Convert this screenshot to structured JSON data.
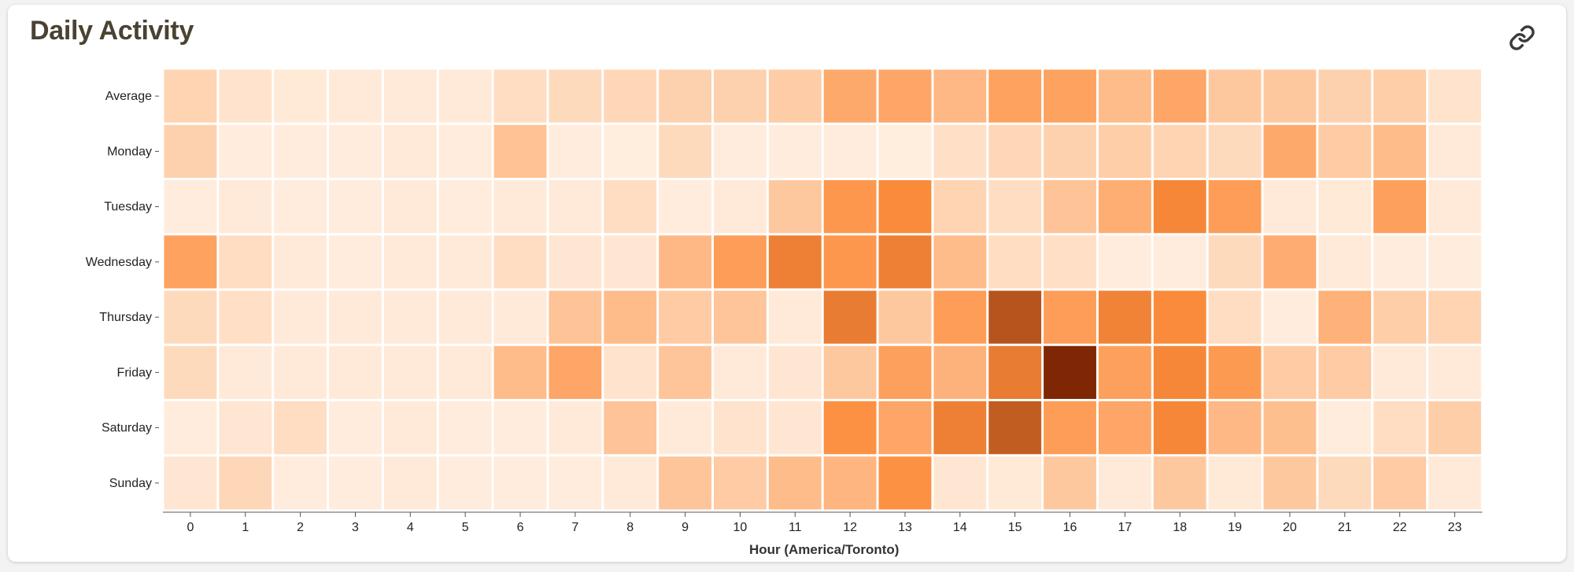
{
  "card": {
    "title": "Daily Activity",
    "link_icon": "link-icon"
  },
  "chart_data": {
    "type": "heatmap",
    "title": "Daily Activity",
    "xlabel": "Hour (America/Toronto)",
    "ylabel": "",
    "x": [
      0,
      1,
      2,
      3,
      4,
      5,
      6,
      7,
      8,
      9,
      10,
      11,
      12,
      13,
      14,
      15,
      16,
      17,
      18,
      19,
      20,
      21,
      22,
      23
    ],
    "rows": [
      "Average",
      "Monday",
      "Tuesday",
      "Wednesday",
      "Thursday",
      "Friday",
      "Saturday",
      "Sunday"
    ],
    "values": [
      [
        0.22,
        0.12,
        0.08,
        0.07,
        0.07,
        0.07,
        0.16,
        0.18,
        0.2,
        0.24,
        0.24,
        0.27,
        0.5,
        0.52,
        0.4,
        0.55,
        0.55,
        0.38,
        0.52,
        0.3,
        0.3,
        0.24,
        0.26,
        0.12
      ],
      [
        0.24,
        0.06,
        0.06,
        0.06,
        0.07,
        0.06,
        0.34,
        0.06,
        0.05,
        0.18,
        0.06,
        0.06,
        0.06,
        0.05,
        0.14,
        0.2,
        0.24,
        0.26,
        0.22,
        0.18,
        0.5,
        0.28,
        0.38,
        0.07
      ],
      [
        0.06,
        0.07,
        0.06,
        0.06,
        0.07,
        0.06,
        0.07,
        0.07,
        0.16,
        0.06,
        0.07,
        0.3,
        0.62,
        0.7,
        0.22,
        0.16,
        0.33,
        0.47,
        0.72,
        0.58,
        0.07,
        0.08,
        0.56,
        0.07
      ],
      [
        0.55,
        0.16,
        0.07,
        0.06,
        0.07,
        0.07,
        0.16,
        0.1,
        0.1,
        0.4,
        0.58,
        0.76,
        0.62,
        0.76,
        0.38,
        0.16,
        0.14,
        0.06,
        0.06,
        0.18,
        0.48,
        0.07,
        0.06,
        0.06
      ],
      [
        0.18,
        0.14,
        0.07,
        0.07,
        0.07,
        0.07,
        0.07,
        0.33,
        0.38,
        0.28,
        0.32,
        0.07,
        0.78,
        0.3,
        0.58,
        1.0,
        0.58,
        0.74,
        0.7,
        0.16,
        0.06,
        0.45,
        0.26,
        0.22
      ],
      [
        0.18,
        0.07,
        0.07,
        0.07,
        0.07,
        0.07,
        0.38,
        0.52,
        0.12,
        0.32,
        0.07,
        0.1,
        0.3,
        0.56,
        0.44,
        0.78,
        1.25,
        0.56,
        0.72,
        0.6,
        0.28,
        0.28,
        0.07,
        0.07
      ],
      [
        0.06,
        0.1,
        0.16,
        0.06,
        0.07,
        0.06,
        0.06,
        0.07,
        0.33,
        0.07,
        0.12,
        0.1,
        0.66,
        0.52,
        0.76,
        0.95,
        0.58,
        0.52,
        0.72,
        0.4,
        0.36,
        0.06,
        0.16,
        0.26
      ],
      [
        0.1,
        0.2,
        0.06,
        0.06,
        0.07,
        0.06,
        0.06,
        0.06,
        0.07,
        0.32,
        0.28,
        0.38,
        0.42,
        0.66,
        0.1,
        0.08,
        0.3,
        0.07,
        0.3,
        0.08,
        0.3,
        0.18,
        0.28,
        0.07
      ]
    ],
    "color_scale": [
      "#fff5eb",
      "#fd8d3c",
      "#7f2704"
    ],
    "legend": "none",
    "grid": false
  }
}
